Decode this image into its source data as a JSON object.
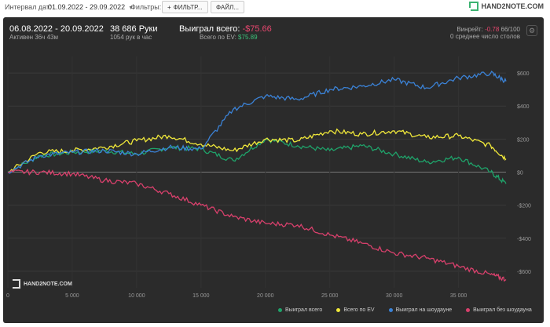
{
  "topbar": {
    "interval_label": "Интервал дат:",
    "date_range": "01.09.2022 - 29.09.2022",
    "filters_label": "Фильтры:",
    "filter_button": "ФИЛЬТР...",
    "file_button": "ФАЙЛ...",
    "brand": "HAND2NOTE.COM"
  },
  "stats": {
    "period": "06.08.2022 - 20.09.2022",
    "active": "Активен 36ч 43м",
    "hands": "38 686 Руки",
    "hands_per_hour": "1054 рук в час",
    "won_total_label": "Выиграл всего:",
    "won_total_value": "-$75.66",
    "ev_total_label": "Всего по EV:",
    "ev_total_value": "$75.89",
    "winrate_label": "Винрейт:",
    "winrate_value": "-0.78",
    "winrate_hands": "66/100",
    "avg_tables": "0 среднее число столов",
    "watermark": "HAND2NOTE.COM"
  },
  "colors": {
    "green": "#1fa36a",
    "yellow": "#f0e83a",
    "blue": "#3b82d6",
    "red": "#d8406c"
  },
  "chart_data": {
    "type": "line",
    "x_ticks": [
      "0",
      "5 000",
      "10 000",
      "15 000",
      "20 000",
      "25 000",
      "30 000",
      "35 000"
    ],
    "y_ticks": [
      "$600",
      "$400",
      "$200",
      "$0",
      "-$200",
      "-$400",
      "-$600"
    ],
    "xlim": [
      0,
      38686
    ],
    "ylim": [
      -700,
      700
    ],
    "x": [
      0,
      2500,
      5000,
      7500,
      10000,
      12500,
      15000,
      17500,
      20000,
      22500,
      25000,
      27500,
      30000,
      32500,
      35000,
      37500,
      38686
    ],
    "series": [
      {
        "name": "Выиграл всего",
        "color": "#1fa36a",
        "values": [
          0,
          100,
          120,
          130,
          110,
          150,
          140,
          70,
          200,
          160,
          130,
          160,
          110,
          60,
          90,
          0,
          -70
        ]
      },
      {
        "name": "Всего по EV",
        "color": "#f0e83a",
        "values": [
          0,
          120,
          130,
          150,
          190,
          220,
          170,
          130,
          200,
          190,
          250,
          230,
          250,
          210,
          220,
          160,
          80
        ]
      },
      {
        "name": "Выиграл на шоудауне",
        "color": "#3b82d6",
        "values": [
          0,
          100,
          120,
          130,
          110,
          150,
          140,
          380,
          460,
          440,
          500,
          520,
          560,
          510,
          570,
          600,
          550
        ]
      },
      {
        "name": "Выиграл без шоудауна",
        "color": "#d8406c",
        "values": [
          0,
          0,
          -10,
          -50,
          -70,
          -130,
          -200,
          -270,
          -310,
          -320,
          -380,
          -430,
          -490,
          -520,
          -570,
          -620,
          -650
        ]
      }
    ],
    "grid": true,
    "legend": "bottom-right"
  }
}
